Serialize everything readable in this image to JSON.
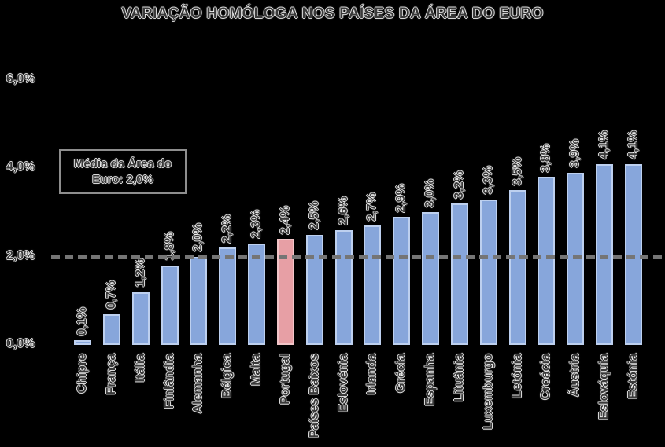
{
  "chart_data": {
    "type": "bar",
    "title": "VARIAÇÃO HOMÓLOGA NOS PAÍSES DA ÁREA DO EURO",
    "categories": [
      "Chipre",
      "França",
      "Itália",
      "Finlândia",
      "Alemanha",
      "Bélgica",
      "Malta",
      "Portugal",
      "Países Baixos",
      "Eslovénia",
      "Irlanda",
      "Grécia",
      "Espanha",
      "Lituânia",
      "Luxemburgo",
      "Letónia",
      "Croácia",
      "Áustria",
      "Eslováquia",
      "Estónia"
    ],
    "values": [
      0.1,
      0.7,
      1.2,
      1.8,
      2.0,
      2.2,
      2.3,
      2.4,
      2.5,
      2.6,
      2.7,
      2.9,
      3.0,
      3.2,
      3.3,
      3.5,
      3.8,
      3.9,
      4.1,
      4.1
    ],
    "value_labels": [
      "0,1%",
      "0,7%",
      "1,2%",
      "1,8%",
      "2,0%",
      "2,2%",
      "2,3%",
      "2,4%",
      "2,5%",
      "2,6%",
      "2,7%",
      "2,9%",
      "3,0%",
      "3,2%",
      "3,3%",
      "3,5%",
      "3,8%",
      "3,9%",
      "4,1%",
      "4,1%"
    ],
    "highlight": {
      "category": "Portugal",
      "index": 7
    },
    "average_line": {
      "value": 2.0,
      "label_line1": "Média da Área do",
      "label_line2": "Euro: 2,0%"
    },
    "y_axis": {
      "tick_values": [
        0,
        2,
        4,
        6
      ],
      "tick_labels": [
        "0,0%",
        "2,0%",
        "4,0%",
        "6,0%"
      ],
      "ylim": [
        0,
        6
      ]
    },
    "xlabel": "",
    "ylabel": "",
    "grid": false,
    "legend": false,
    "bar_label_rotation_deg": 90,
    "category_label_rotation_deg": 90,
    "colors": {
      "bar_fill": "#87a6db",
      "bar_border": "#bdd0ef",
      "highlight_fill": "#e79fa5",
      "highlight_border": "#f2c5c8",
      "average_line": "#757575",
      "annotation_border": "#8e8e8e",
      "text": "#3a3a3a",
      "background": "#000000"
    }
  }
}
